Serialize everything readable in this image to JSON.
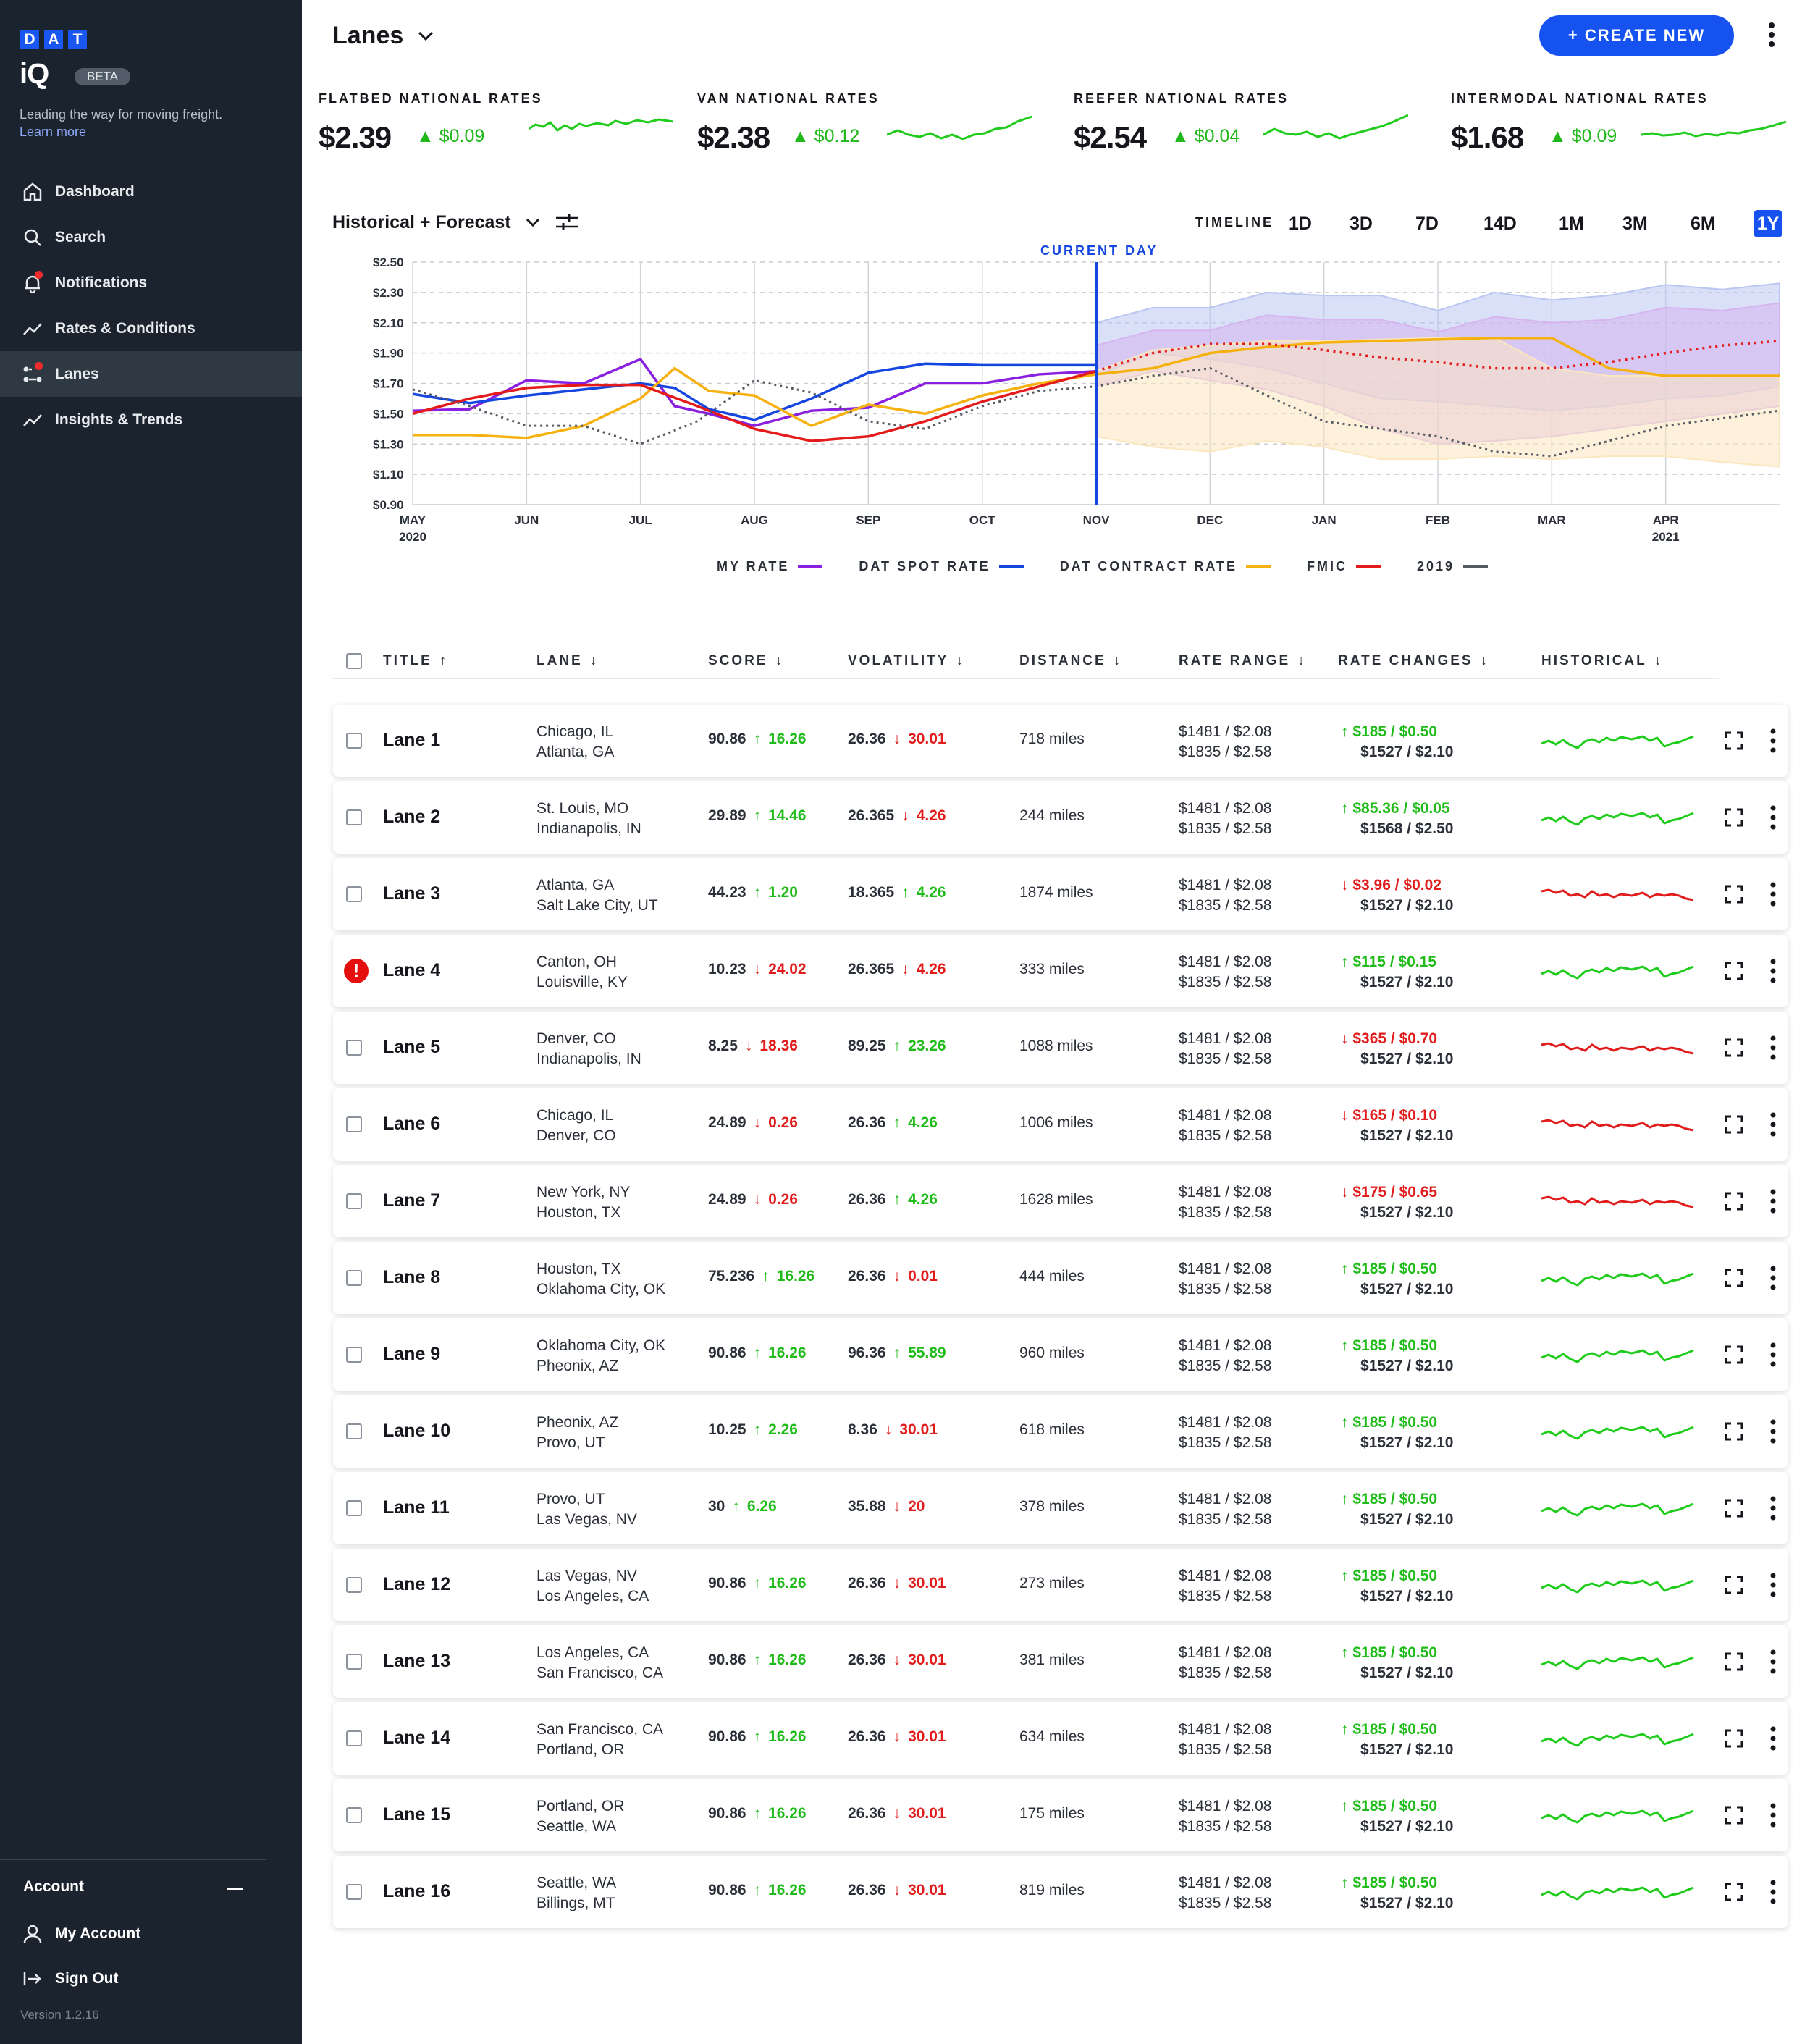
{
  "sidebar": {
    "logo_letters": [
      "D",
      "A",
      "T"
    ],
    "logo_iq": "iQ",
    "beta": "BETA",
    "tagline": "Leading the way for moving freight.",
    "learn_more": "Learn more",
    "items": [
      {
        "label": "Dashboard",
        "icon": "home-icon"
      },
      {
        "label": "Search",
        "icon": "search-icon"
      },
      {
        "label": "Notifications",
        "icon": "bell-icon"
      },
      {
        "label": "Rates & Conditions",
        "icon": "trend-icon"
      },
      {
        "label": "Lanes",
        "icon": "lanes-icon"
      },
      {
        "label": "Insights & Trends",
        "icon": "trend-icon"
      }
    ],
    "account_heading": "Account",
    "my_account": "My Account",
    "sign_out": "Sign Out",
    "version": "Version 1.2.16"
  },
  "header": {
    "title": "Lanes",
    "create_new": "+ CREATE NEW"
  },
  "rates": [
    {
      "label": "FLATBED NATIONAL RATES",
      "value": "$2.39",
      "change": "$0.09"
    },
    {
      "label": "VAN NATIONAL RATES",
      "value": "$2.38",
      "change": "$0.12"
    },
    {
      "label": "REEFER NATIONAL RATES",
      "value": "$2.54",
      "change": "$0.04"
    },
    {
      "label": "INTERMODAL NATIONAL RATES",
      "value": "$1.68",
      "change": "$0.09"
    }
  ],
  "controls": {
    "view": "Historical + Forecast",
    "timeline_label": "TIMELINE",
    "timeline_options": [
      "1D",
      "3D",
      "7D",
      "14D",
      "1M",
      "3M",
      "6M",
      "1Y"
    ],
    "timeline_selected": "1Y"
  },
  "chart_data": {
    "type": "line",
    "current_day_label": "CURRENT DAY",
    "y_ticks": [
      "$2.50",
      "$2.30",
      "$2.10",
      "$1.90",
      "$1.70",
      "$1.50",
      "$1.30",
      "$1.10",
      "$0.90"
    ],
    "ylim": [
      0.9,
      2.5
    ],
    "x_ticks": [
      "MAY 2020",
      "JUN",
      "JUL",
      "AUG",
      "SEP",
      "OCT",
      "NOV",
      "DEC",
      "JAN",
      "FEB",
      "MAR",
      "APR 2021"
    ],
    "series": [
      {
        "name": "MY RATE",
        "color": "#8b1fe0",
        "x": [
          0,
          0.5,
          1,
          1.5,
          2,
          2.3,
          2.6,
          3,
          3.5,
          4,
          4.5,
          5,
          5.5,
          6
        ],
        "y": [
          1.52,
          1.53,
          1.72,
          1.7,
          1.86,
          1.55,
          1.5,
          1.42,
          1.52,
          1.54,
          1.7,
          1.7,
          1.76,
          1.78
        ]
      },
      {
        "name": "DAT SPOT RATE",
        "color": "#1646e0",
        "x": [
          0,
          0.5,
          1,
          1.5,
          2,
          2.3,
          2.6,
          3,
          3.5,
          4,
          4.5,
          5,
          5.5,
          6
        ],
        "y": [
          1.63,
          1.57,
          1.62,
          1.66,
          1.7,
          1.67,
          1.53,
          1.46,
          1.6,
          1.77,
          1.83,
          1.82,
          1.82,
          1.82
        ]
      },
      {
        "name": "DAT CONTRACT RATE",
        "color": "#f6b10e",
        "x": [
          0,
          0.5,
          1,
          1.5,
          2,
          2.3,
          2.6,
          3,
          3.5,
          4,
          4.5,
          5,
          5.5,
          6,
          6.5,
          7,
          7.5,
          8,
          8.5,
          9,
          9.5,
          10,
          10.5,
          11,
          11.5,
          12
        ],
        "y": [
          1.36,
          1.36,
          1.34,
          1.42,
          1.6,
          1.8,
          1.65,
          1.62,
          1.42,
          1.56,
          1.5,
          1.62,
          1.7,
          1.76,
          1.8,
          1.9,
          1.94,
          1.97,
          1.98,
          1.99,
          2.0,
          2.0,
          1.8,
          1.75,
          1.75,
          1.75
        ]
      },
      {
        "name": "FMIC",
        "color": "#e51a1a",
        "x": [
          0,
          0.5,
          1,
          1.5,
          2,
          2.5,
          3,
          3.5,
          4,
          4.5,
          5,
          5.5,
          6,
          6.5,
          7,
          7.5,
          8,
          8.5,
          9,
          9.5,
          10,
          10.5,
          11,
          11.5,
          12
        ],
        "y": [
          1.5,
          1.6,
          1.67,
          1.69,
          1.69,
          1.55,
          1.4,
          1.32,
          1.35,
          1.45,
          1.58,
          1.68,
          1.78,
          1.9,
          1.96,
          1.96,
          1.92,
          1.87,
          1.84,
          1.8,
          1.8,
          1.84,
          1.9,
          1.95,
          1.98
        ]
      },
      {
        "name": "2019",
        "color": "#555a63",
        "x": [
          0,
          0.5,
          1,
          1.5,
          2,
          2.5,
          3,
          3.5,
          4,
          4.5,
          5,
          5.5,
          6,
          6.5,
          7,
          7.5,
          8,
          8.5,
          9,
          9.5,
          10,
          10.5,
          11,
          11.5,
          12
        ],
        "y": [
          1.66,
          1.55,
          1.42,
          1.42,
          1.3,
          1.45,
          1.72,
          1.64,
          1.45,
          1.4,
          1.55,
          1.65,
          1.68,
          1.75,
          1.8,
          1.62,
          1.45,
          1.4,
          1.35,
          1.25,
          1.22,
          1.32,
          1.42,
          1.47,
          1.52
        ]
      }
    ],
    "bands": [
      {
        "color": "#b9c6f1",
        "x": [
          6,
          6.5,
          7,
          7.5,
          8,
          8.5,
          9,
          9.5,
          10,
          10.5,
          11,
          11.5,
          12
        ],
        "upper": [
          2.1,
          2.2,
          2.2,
          2.3,
          2.28,
          2.28,
          2.18,
          2.3,
          2.25,
          2.28,
          2.35,
          2.32,
          2.36
        ],
        "lower": [
          1.75,
          1.9,
          1.86,
          1.8,
          1.7,
          1.6,
          1.58,
          1.55,
          1.52,
          1.55,
          1.6,
          1.62,
          1.68
        ]
      },
      {
        "color": "#d6b4f0",
        "x": [
          6,
          6.5,
          7,
          7.5,
          8,
          8.5,
          9,
          9.5,
          10,
          10.5,
          11,
          11.5,
          12
        ],
        "upper": [
          1.95,
          2.05,
          2.05,
          2.15,
          2.12,
          2.12,
          2.04,
          2.14,
          2.1,
          2.12,
          2.2,
          2.18,
          2.23
        ],
        "lower": [
          1.68,
          1.78,
          1.72,
          1.66,
          1.55,
          1.4,
          1.3,
          1.32,
          1.35,
          1.4,
          1.45,
          1.5,
          1.55
        ]
      },
      {
        "color": "#fbe6bf",
        "x": [
          6,
          6.5,
          7,
          7.5,
          8,
          8.5,
          9,
          9.5,
          10,
          10.5,
          11,
          11.5,
          12
        ],
        "upper": [
          1.78,
          1.92,
          1.95,
          1.98,
          1.98,
          1.99,
          2.0,
          2.0,
          1.8,
          1.75,
          1.75,
          1.75,
          1.75
        ],
        "lower": [
          1.35,
          1.28,
          1.25,
          1.32,
          1.28,
          1.2,
          1.2,
          1.22,
          1.2,
          1.22,
          1.22,
          1.18,
          1.15
        ]
      }
    ]
  },
  "table": {
    "headers": [
      "TITLE",
      "LANE",
      "SCORE",
      "VOLATILITY",
      "DISTANCE",
      "RATE RANGE",
      "RATE CHANGES",
      "HISTORICAL"
    ],
    "rows": [
      {
        "title": "Lane 1",
        "from": "Chicago, IL",
        "to": "Atlanta, GA",
        "score": "90.86",
        "score_d": "16.26",
        "score_up": true,
        "vol": "26.36",
        "vol_d": "30.01",
        "vol_up": false,
        "dist": "718 miles",
        "rr1": "$1481 / $2.08",
        "rr2": "$1835 / $2.58",
        "rc1": "$185 / $0.50",
        "rc_up": true,
        "rc2": "$1527 / $2.10",
        "alert": false
      },
      {
        "title": "Lane 2",
        "from": "St. Louis, MO",
        "to": "Indianapolis, IN",
        "score": "29.89",
        "score_d": "14.46",
        "score_up": true,
        "vol": "26.365",
        "vol_d": "4.26",
        "vol_up": false,
        "dist": "244 miles",
        "rr1": "$1481 / $2.08",
        "rr2": "$1835 / $2.58",
        "rc1": "$85.36 / $0.05",
        "rc_up": true,
        "rc2": "$1568 / $2.50",
        "alert": false
      },
      {
        "title": "Lane 3",
        "from": "Atlanta, GA",
        "to": "Salt Lake City, UT",
        "score": "44.23",
        "score_d": "1.20",
        "score_up": true,
        "vol": "18.365",
        "vol_d": "4.26",
        "vol_up": true,
        "dist": "1874 miles",
        "rr1": "$1481 / $2.08",
        "rr2": "$1835 / $2.58",
        "rc1": "$3.96 / $0.02",
        "rc_up": false,
        "rc2": "$1527 / $2.10",
        "alert": false
      },
      {
        "title": "Lane 4",
        "from": "Canton, OH",
        "to": "Louisville, KY",
        "score": "10.23",
        "score_d": "24.02",
        "score_up": false,
        "vol": "26.365",
        "vol_d": "4.26",
        "vol_up": false,
        "dist": "333 miles",
        "rr1": "$1481 / $2.08",
        "rr2": "$1835 / $2.58",
        "rc1": "$115 / $0.15",
        "rc_up": true,
        "rc2": "$1527 / $2.10",
        "alert": true
      },
      {
        "title": "Lane 5",
        "from": "Denver, CO",
        "to": "Indianapolis, IN",
        "score": "8.25",
        "score_d": "18.36",
        "score_up": false,
        "vol": "89.25",
        "vol_d": "23.26",
        "vol_up": true,
        "dist": "1088 miles",
        "rr1": "$1481 / $2.08",
        "rr2": "$1835 / $2.58",
        "rc1": "$365 / $0.70",
        "rc_up": false,
        "rc2": "$1527 / $2.10",
        "alert": false
      },
      {
        "title": "Lane 6",
        "from": "Chicago, IL",
        "to": "Denver, CO",
        "score": "24.89",
        "score_d": "0.26",
        "score_up": false,
        "vol": "26.36",
        "vol_d": "4.26",
        "vol_up": true,
        "dist": "1006 miles",
        "rr1": "$1481 / $2.08",
        "rr2": "$1835 / $2.58",
        "rc1": "$165 / $0.10",
        "rc_up": false,
        "rc2": "$1527 / $2.10",
        "alert": false
      },
      {
        "title": "Lane 7",
        "from": "New York, NY",
        "to": "Houston, TX",
        "score": "24.89",
        "score_d": "0.26",
        "score_up": false,
        "vol": "26.36",
        "vol_d": "4.26",
        "vol_up": true,
        "dist": "1628 miles",
        "rr1": "$1481 / $2.08",
        "rr2": "$1835 / $2.58",
        "rc1": "$175 / $0.65",
        "rc_up": false,
        "rc2": "$1527 / $2.10",
        "alert": false
      },
      {
        "title": "Lane 8",
        "from": "Houston, TX",
        "to": "Oklahoma City, OK",
        "score": "75.236",
        "score_d": "16.26",
        "score_up": true,
        "vol": "26.36",
        "vol_d": "0.01",
        "vol_up": false,
        "dist": "444 miles",
        "rr1": "$1481 / $2.08",
        "rr2": "$1835 / $2.58",
        "rc1": "$185 / $0.50",
        "rc_up": true,
        "rc2": "$1527 / $2.10",
        "alert": false
      },
      {
        "title": "Lane 9",
        "from": "Oklahoma City, OK",
        "to": "Pheonix, AZ",
        "score": "90.86",
        "score_d": "16.26",
        "score_up": true,
        "vol": "96.36",
        "vol_d": "55.89",
        "vol_up": true,
        "dist": "960 miles",
        "rr1": "$1481 / $2.08",
        "rr2": "$1835 / $2.58",
        "rc1": "$185 / $0.50",
        "rc_up": true,
        "rc2": "$1527 / $2.10",
        "alert": false
      },
      {
        "title": "Lane 10",
        "from": "Pheonix, AZ",
        "to": "Provo, UT",
        "score": "10.25",
        "score_d": "2.26",
        "score_up": true,
        "vol": "8.36",
        "vol_d": "30.01",
        "vol_up": false,
        "dist": "618 miles",
        "rr1": "$1481 / $2.08",
        "rr2": "$1835 / $2.58",
        "rc1": "$185 / $0.50",
        "rc_up": true,
        "rc2": "$1527 / $2.10",
        "alert": false
      },
      {
        "title": "Lane 11",
        "from": "Provo, UT",
        "to": "Las Vegas, NV",
        "score": "30",
        "score_d": "6.26",
        "score_up": true,
        "vol": "35.88",
        "vol_d": "20",
        "vol_up": false,
        "dist": "378 miles",
        "rr1": "$1481 / $2.08",
        "rr2": "$1835 / $2.58",
        "rc1": "$185 / $0.50",
        "rc_up": true,
        "rc2": "$1527 / $2.10",
        "alert": false
      },
      {
        "title": "Lane 12",
        "from": "Las Vegas, NV",
        "to": "Los Angeles, CA",
        "score": "90.86",
        "score_d": "16.26",
        "score_up": true,
        "vol": "26.36",
        "vol_d": "30.01",
        "vol_up": false,
        "dist": "273 miles",
        "rr1": "$1481 / $2.08",
        "rr2": "$1835 / $2.58",
        "rc1": "$185 / $0.50",
        "rc_up": true,
        "rc2": "$1527 / $2.10",
        "alert": false
      },
      {
        "title": "Lane 13",
        "from": "Los Angeles, CA",
        "to": "San Francisco, CA",
        "score": "90.86",
        "score_d": "16.26",
        "score_up": true,
        "vol": "26.36",
        "vol_d": "30.01",
        "vol_up": false,
        "dist": "381 miles",
        "rr1": "$1481 / $2.08",
        "rr2": "$1835 / $2.58",
        "rc1": "$185 / $0.50",
        "rc_up": true,
        "rc2": "$1527 / $2.10",
        "alert": false
      },
      {
        "title": "Lane 14",
        "from": "San Francisco, CA",
        "to": "Portland, OR",
        "score": "90.86",
        "score_d": "16.26",
        "score_up": true,
        "vol": "26.36",
        "vol_d": "30.01",
        "vol_up": false,
        "dist": "634 miles",
        "rr1": "$1481 / $2.08",
        "rr2": "$1835 / $2.58",
        "rc1": "$185 / $0.50",
        "rc_up": true,
        "rc2": "$1527 / $2.10",
        "alert": false
      },
      {
        "title": "Lane 15",
        "from": "Portland, OR",
        "to": "Seattle, WA",
        "score": "90.86",
        "score_d": "16.26",
        "score_up": true,
        "vol": "26.36",
        "vol_d": "30.01",
        "vol_up": false,
        "dist": "175 miles",
        "rr1": "$1481 / $2.08",
        "rr2": "$1835 / $2.58",
        "rc1": "$185 / $0.50",
        "rc_up": true,
        "rc2": "$1527 / $2.10",
        "alert": false
      },
      {
        "title": "Lane 16",
        "from": "Seattle, WA",
        "to": "Billings, MT",
        "score": "90.86",
        "score_d": "16.26",
        "score_up": true,
        "vol": "26.36",
        "vol_d": "30.01",
        "vol_up": false,
        "dist": "819 miles",
        "rr1": "$1481 / $2.08",
        "rr2": "$1835 / $2.58",
        "rc1": "$185 / $0.50",
        "rc_up": true,
        "rc2": "$1527 / $2.10",
        "alert": false
      }
    ]
  }
}
